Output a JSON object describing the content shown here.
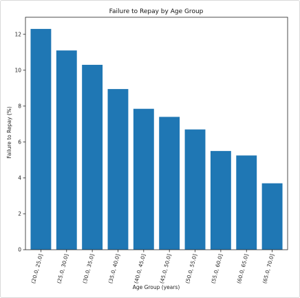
{
  "chart_data": {
    "type": "bar",
    "title": "Failure to Repay by Age Group",
    "xlabel": "Age Group (years)",
    "ylabel": "Failure to Repay (%)",
    "categories": [
      "(20.0, 25.0]",
      "(25.0, 30.0]",
      "(30.0, 35.0]",
      "(35.0, 40.0]",
      "(40.0, 45.0]",
      "(45.0, 50.0]",
      "(50.0, 55.0]",
      "(55.0, 60.0]",
      "(60.0, 65.0]",
      "(65.0, 70.0]"
    ],
    "values": [
      12.3,
      11.1,
      10.3,
      8.95,
      7.85,
      7.4,
      6.7,
      5.5,
      5.25,
      3.7
    ],
    "ylim": [
      0,
      12.95
    ],
    "yticks": [
      0,
      2,
      4,
      6,
      8,
      10,
      12
    ],
    "grid": false,
    "color": "#1f77b4"
  }
}
